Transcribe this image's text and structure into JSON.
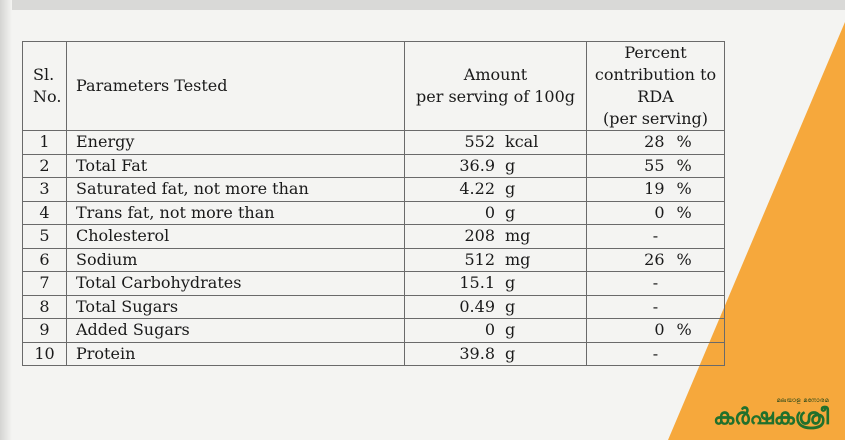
{
  "table": {
    "headers": {
      "no_line1": "Sl.",
      "no_line2": "No.",
      "param": "Parameters Tested",
      "amount_line1": "Amount",
      "amount_line2": "per serving of 100g",
      "percent_line1": "Percent",
      "percent_line2": "contribution to",
      "percent_line3": "RDA",
      "percent_line4": "(per serving)"
    },
    "rows": [
      {
        "no": "1",
        "param": "Energy",
        "amount": "552",
        "unit": "kcal",
        "pct": "28",
        "pct_unit": "%"
      },
      {
        "no": "2",
        "param": "Total Fat",
        "amount": "36.9",
        "unit": "g",
        "pct": "55",
        "pct_unit": "%"
      },
      {
        "no": "3",
        "param": "Saturated fat, not more than",
        "amount": "4.22",
        "unit": "g",
        "pct": "19",
        "pct_unit": "%"
      },
      {
        "no": "4",
        "param": "Trans fat, not more than",
        "amount": "0",
        "unit": "g",
        "pct": "0",
        "pct_unit": "%"
      },
      {
        "no": "5",
        "param": "Cholesterol",
        "amount": "208",
        "unit": "mg",
        "pct": "-",
        "pct_unit": ""
      },
      {
        "no": "6",
        "param": "Sodium",
        "amount": "512",
        "unit": "mg",
        "pct": "26",
        "pct_unit": "%"
      },
      {
        "no": "7",
        "param": "Total Carbohydrates",
        "amount": "15.1",
        "unit": "g",
        "pct": "-",
        "pct_unit": ""
      },
      {
        "no": "8",
        "param": "Total Sugars",
        "amount": "0.49",
        "unit": "g",
        "pct": "-",
        "pct_unit": ""
      },
      {
        "no": "9",
        "param": "Added Sugars",
        "amount": "0",
        "unit": "g",
        "pct": "0",
        "pct_unit": "%"
      },
      {
        "no": "10",
        "param": "Protein",
        "amount": "39.8",
        "unit": "g",
        "pct": "-",
        "pct_unit": ""
      }
    ]
  },
  "logo": {
    "tagline": "മലയാള മനോരമ",
    "name": "കർഷകശ്രീ"
  },
  "colors": {
    "accent": "#f6a83c",
    "logo": "#21702c"
  }
}
